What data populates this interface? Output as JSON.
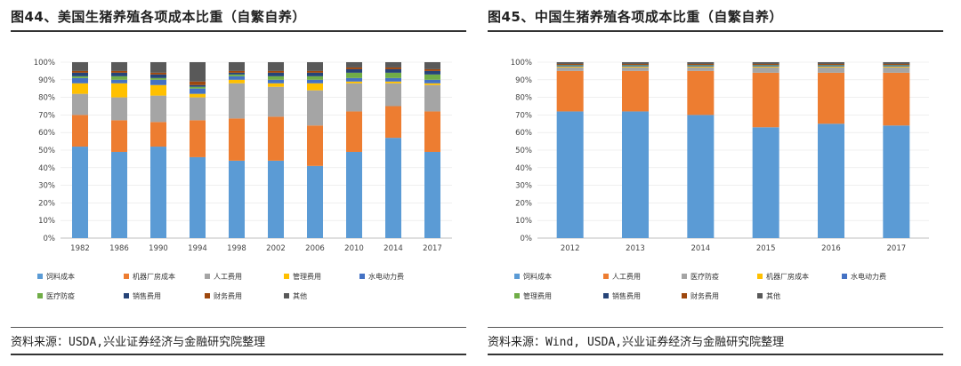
{
  "us": {
    "title": "图44、美国生猪养殖各项成本比重（自繁自养）",
    "source": "资料来源：USDA,兴业证券经济与金融研究院整理",
    "chart_data": {
      "type": "bar",
      "stacked": true,
      "categories": [
        "1982",
        "1986",
        "1990",
        "1994",
        "1998",
        "2002",
        "2006",
        "2010",
        "2014",
        "2017"
      ],
      "ylim": [
        0,
        100
      ],
      "yticks": [
        "0%",
        "10%",
        "20%",
        "30%",
        "40%",
        "50%",
        "60%",
        "70%",
        "80%",
        "90%",
        "100%"
      ],
      "legend_position": "bottom",
      "series": [
        {
          "name": "饲料成本",
          "color": "#5b9bd5",
          "values": [
            52,
            49,
            52,
            46,
            44,
            44,
            41,
            49,
            57,
            49
          ]
        },
        {
          "name": "机器厂房成本",
          "color": "#ed7d31",
          "values": [
            18,
            18,
            14,
            21,
            24,
            25,
            23,
            23,
            18,
            23
          ]
        },
        {
          "name": "人工费用",
          "color": "#a5a5a5",
          "values": [
            12,
            13,
            15,
            13,
            20,
            17,
            20,
            16,
            13,
            15
          ]
        },
        {
          "name": "管理费用",
          "color": "#ffc000",
          "values": [
            6,
            8,
            6,
            2,
            2,
            2,
            4,
            1,
            1,
            1
          ]
        },
        {
          "name": "水电动力费",
          "color": "#4472c4",
          "values": [
            3,
            2,
            3,
            3,
            2,
            2,
            2,
            2,
            2,
            2
          ]
        },
        {
          "name": "医疗防疫",
          "color": "#70ad47",
          "values": [
            1,
            2,
            1,
            1,
            1,
            2,
            2,
            3,
            3,
            3
          ]
        },
        {
          "name": "销售费用",
          "color": "#264478",
          "values": [
            2,
            2,
            2,
            1,
            1,
            2,
            2,
            2,
            2,
            2
          ]
        },
        {
          "name": "财务费用",
          "color": "#9e480e",
          "values": [
            1,
            1,
            1,
            2,
            1,
            1,
            1,
            1,
            1,
            1
          ]
        },
        {
          "name": "其他",
          "color": "#595959",
          "values": [
            5,
            5,
            6,
            11,
            5,
            5,
            5,
            3,
            3,
            4
          ]
        }
      ]
    }
  },
  "cn": {
    "title": "图45、中国生猪养殖各项成本比重（自繁自养）",
    "source": "资料来源：Wind, USDA,兴业证券经济与金融研究院整理",
    "chart_data": {
      "type": "bar",
      "stacked": true,
      "categories": [
        "2012",
        "2013",
        "2014",
        "2015",
        "2016",
        "2017"
      ],
      "ylim": [
        0,
        100
      ],
      "yticks": [
        "0%",
        "10%",
        "20%",
        "30%",
        "40%",
        "50%",
        "60%",
        "70%",
        "80%",
        "90%",
        "100%"
      ],
      "legend_position": "bottom",
      "series": [
        {
          "name": "饲料成本",
          "color": "#5b9bd5",
          "values": [
            72,
            72,
            70,
            63,
            65,
            64
          ]
        },
        {
          "name": "人工费用",
          "color": "#ed7d31",
          "values": [
            23,
            23,
            25,
            31,
            29,
            30
          ]
        },
        {
          "name": "医疗防疫",
          "color": "#a5a5a5",
          "values": [
            2,
            2,
            2,
            3,
            3,
            3
          ]
        },
        {
          "name": "机器厂房成本",
          "color": "#ffc000",
          "values": [
            0.5,
            0.5,
            0.5,
            0.5,
            0.5,
            0.5
          ]
        },
        {
          "name": "水电动力费",
          "color": "#4472c4",
          "values": [
            0.5,
            0.5,
            0.5,
            0.5,
            0.5,
            0.5
          ]
        },
        {
          "name": "管理费用",
          "color": "#70ad47",
          "values": [
            0.3,
            0.3,
            0.3,
            0.3,
            0.3,
            0.3
          ]
        },
        {
          "name": "销售费用",
          "color": "#264478",
          "values": [
            0.2,
            0.2,
            0.2,
            0.2,
            0.2,
            0.2
          ]
        },
        {
          "name": "财务费用",
          "color": "#9e480e",
          "values": [
            0.5,
            0.5,
            0.5,
            0.5,
            0.5,
            0.5
          ]
        },
        {
          "name": "其他",
          "color": "#595959",
          "values": [
            1,
            1,
            1,
            1,
            1,
            1
          ]
        }
      ]
    }
  }
}
